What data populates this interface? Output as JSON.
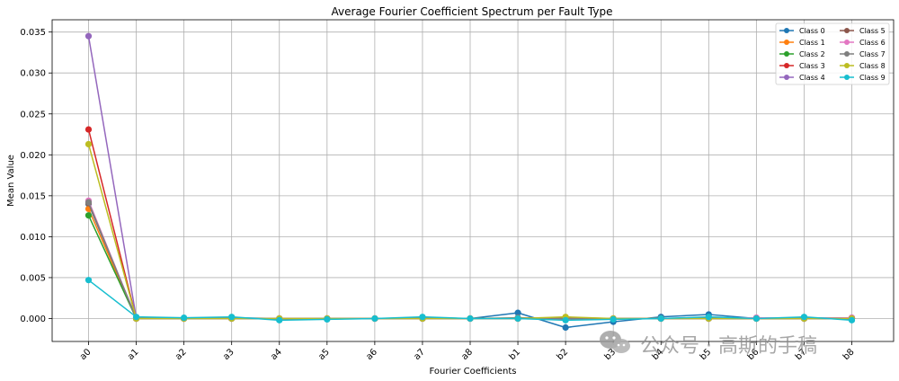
{
  "chart_data": {
    "type": "line",
    "title": "Average Fourier Coefficient Spectrum per Fault Type",
    "xlabel": "Fourier Coefficients",
    "ylabel": "Mean Value",
    "categories": [
      "a0",
      "a1",
      "a2",
      "a3",
      "a4",
      "a5",
      "a6",
      "a7",
      "a8",
      "b1",
      "b2",
      "b3",
      "b4",
      "b5",
      "b6",
      "b7",
      "b8"
    ],
    "ylim": [
      -0.0028,
      0.0365
    ],
    "yticks": [
      0.0,
      0.005,
      0.01,
      0.015,
      0.02,
      0.025,
      0.03,
      0.035
    ],
    "ytick_labels": [
      "0.000",
      "0.005",
      "0.010",
      "0.015",
      "0.020",
      "0.025",
      "0.030",
      "0.035"
    ],
    "grid": true,
    "legend_position": "top-right",
    "series": [
      {
        "name": "Class 0",
        "color": "#1f77b4",
        "values": [
          0.014,
          0.0001,
          0.0,
          0.0001,
          0.0,
          0.0,
          0.0,
          0.0001,
          0.0,
          0.0007,
          -0.0011,
          -0.0004,
          0.0002,
          0.0005,
          0.0,
          0.0001,
          0.0
        ]
      },
      {
        "name": "Class 1",
        "color": "#ff7f0e",
        "values": [
          0.0134,
          0.0,
          0.0,
          0.0,
          0.0,
          0.0,
          0.0,
          0.0,
          0.0,
          0.0,
          0.0001,
          0.0,
          0.0,
          0.0,
          0.0,
          0.0,
          0.0
        ]
      },
      {
        "name": "Class 2",
        "color": "#2ca02c",
        "values": [
          0.0126,
          0.0,
          0.0,
          0.0,
          0.0,
          0.0,
          0.0,
          0.0,
          0.0,
          0.0,
          0.0,
          0.0,
          0.0,
          0.0,
          0.0,
          0.0,
          0.0
        ]
      },
      {
        "name": "Class 3",
        "color": "#d62728",
        "values": [
          0.0231,
          0.0,
          0.0,
          0.0,
          0.0,
          0.0,
          0.0,
          0.0,
          0.0,
          0.0,
          0.0,
          0.0,
          0.0,
          0.0,
          0.0,
          0.0,
          0.0
        ]
      },
      {
        "name": "Class 4",
        "color": "#9467bd",
        "values": [
          0.0345,
          0.0001,
          0.0,
          0.0,
          0.0,
          0.0,
          0.0,
          0.0,
          0.0,
          0.0,
          0.0,
          0.0,
          0.0,
          0.0,
          0.0001,
          0.0,
          0.0
        ]
      },
      {
        "name": "Class 5",
        "color": "#8c564b",
        "values": [
          0.0141,
          0.0,
          0.0,
          0.0,
          0.0,
          0.0,
          0.0,
          0.0,
          0.0,
          0.0,
          0.0,
          0.0,
          0.0,
          0.0,
          0.0,
          0.0,
          0.0001
        ]
      },
      {
        "name": "Class 6",
        "color": "#e377c2",
        "values": [
          0.0144,
          0.0,
          0.0,
          0.0,
          0.0,
          0.0,
          0.0,
          0.0,
          0.0,
          0.0,
          0.0,
          0.0,
          0.0,
          0.0,
          0.0001,
          0.0,
          0.0001
        ]
      },
      {
        "name": "Class 7",
        "color": "#7f7f7f",
        "values": [
          0.0142,
          0.0,
          0.0,
          0.0,
          0.0,
          0.0,
          0.0,
          0.0,
          0.0,
          0.0001,
          0.0,
          0.0,
          0.0,
          0.0,
          0.0,
          0.0,
          0.0
        ]
      },
      {
        "name": "Class 8",
        "color": "#bcbd22",
        "values": [
          0.0213,
          0.0,
          0.0,
          0.0,
          0.0,
          0.0,
          0.0,
          0.0,
          0.0,
          0.0,
          0.0002,
          0.0,
          0.0,
          0.0,
          0.0,
          0.0,
          0.0
        ]
      },
      {
        "name": "Class 9",
        "color": "#17becf",
        "values": [
          0.0047,
          0.0002,
          0.0001,
          0.0002,
          -0.0002,
          -0.0001,
          0.0,
          0.0002,
          0.0,
          0.0,
          -0.0002,
          -0.0001,
          0.0,
          0.0002,
          0.0,
          0.0002,
          -0.0002
        ]
      }
    ]
  },
  "watermark": {
    "icon": "wechat-icon",
    "text": "公众号 · 高斯的手稿"
  }
}
